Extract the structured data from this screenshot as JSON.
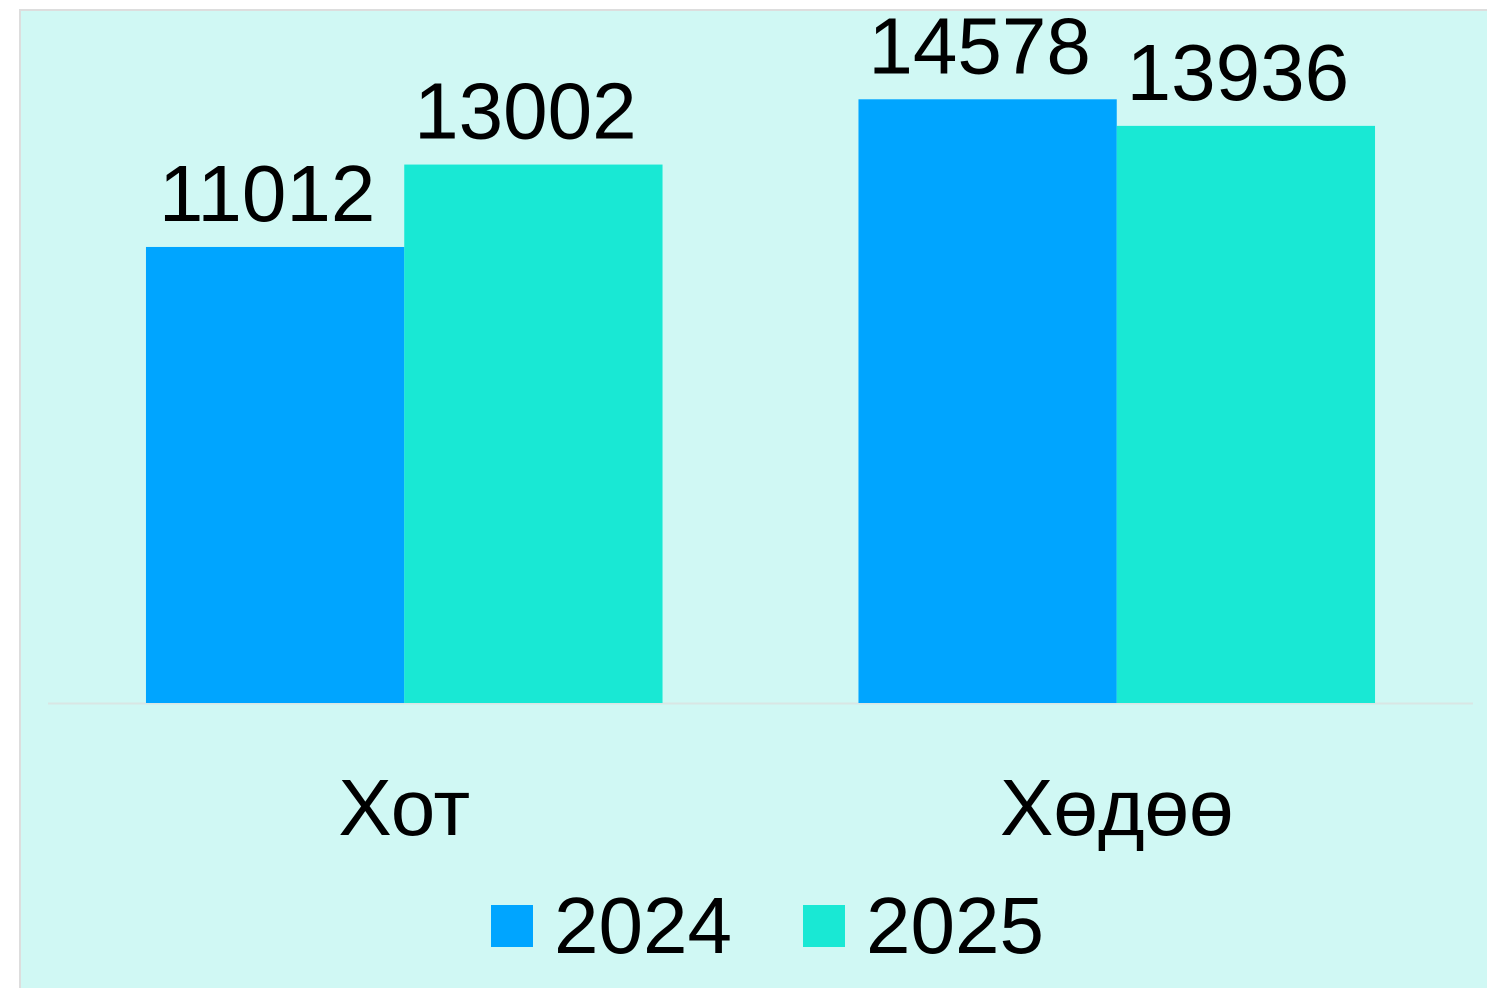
{
  "chart_data": {
    "type": "bar",
    "categories": [
      "Хот",
      "Хөдөө"
    ],
    "series": [
      {
        "name": "2024",
        "color": "#00a5ff",
        "values": [
          11012,
          14578
        ]
      },
      {
        "name": "2025",
        "color": "#19e8d4",
        "values": [
          13002,
          13936
        ]
      }
    ],
    "ylim": [
      0,
      16000
    ],
    "legend": "bottom"
  }
}
